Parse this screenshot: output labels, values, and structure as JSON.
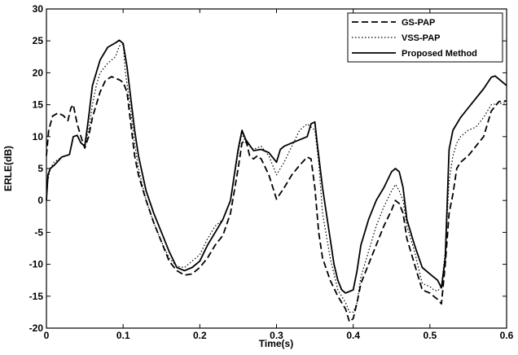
{
  "chart_data": {
    "type": "line",
    "title": "",
    "xlabel": "Time(s)",
    "ylabel": "ERLE(dB)",
    "xlim": [
      0,
      0.6
    ],
    "ylim": [
      -20,
      30
    ],
    "x_ticks": [
      0,
      0.1,
      0.2,
      0.3,
      0.4,
      0.5,
      0.6
    ],
    "y_ticks": [
      -20,
      -15,
      -10,
      -5,
      0,
      5,
      10,
      15,
      20,
      25,
      30
    ],
    "x_tick_labels": [
      "0",
      "0.1",
      "0.2",
      "0.3",
      "0.4",
      "0.5",
      "0.6"
    ],
    "y_tick_labels": [
      "-20",
      "-15",
      "-10",
      "-5",
      "0",
      "5",
      "10",
      "15",
      "20",
      "25",
      "30"
    ],
    "grid": false,
    "legend_position": "top-right",
    "series": [
      {
        "name": "GS-PAP",
        "style": "dashed",
        "color": "#000000",
        "points": [
          [
            0,
            7
          ],
          [
            0.003,
            11
          ],
          [
            0.008,
            13.2
          ],
          [
            0.015,
            13.7
          ],
          [
            0.022,
            13.3
          ],
          [
            0.028,
            12.5
          ],
          [
            0.032,
            14.5
          ],
          [
            0.035,
            15
          ],
          [
            0.04,
            12
          ],
          [
            0.045,
            10
          ],
          [
            0.05,
            8.2
          ],
          [
            0.055,
            10
          ],
          [
            0.06,
            13
          ],
          [
            0.065,
            15
          ],
          [
            0.07,
            17
          ],
          [
            0.077,
            18.8
          ],
          [
            0.085,
            19.4
          ],
          [
            0.095,
            18.9
          ],
          [
            0.1,
            18.5
          ],
          [
            0.105,
            17
          ],
          [
            0.11,
            12
          ],
          [
            0.115,
            7
          ],
          [
            0.12,
            4
          ],
          [
            0.13,
            0
          ],
          [
            0.14,
            -3.5
          ],
          [
            0.15,
            -6.5
          ],
          [
            0.16,
            -9.5
          ],
          [
            0.17,
            -11
          ],
          [
            0.18,
            -11.7
          ],
          [
            0.19,
            -11.5
          ],
          [
            0.2,
            -10.5
          ],
          [
            0.21,
            -9
          ],
          [
            0.22,
            -7
          ],
          [
            0.23,
            -5.5
          ],
          [
            0.24,
            -2
          ],
          [
            0.25,
            5
          ],
          [
            0.255,
            9
          ],
          [
            0.26,
            9.5
          ],
          [
            0.265,
            7
          ],
          [
            0.27,
            6.5
          ],
          [
            0.275,
            7
          ],
          [
            0.28,
            6.5
          ],
          [
            0.29,
            4
          ],
          [
            0.3,
            0.2
          ],
          [
            0.31,
            2
          ],
          [
            0.32,
            4
          ],
          [
            0.33,
            5.5
          ],
          [
            0.34,
            6.8
          ],
          [
            0.345,
            6.5
          ],
          [
            0.35,
            2
          ],
          [
            0.355,
            -5
          ],
          [
            0.36,
            -9
          ],
          [
            0.37,
            -12.5
          ],
          [
            0.38,
            -15
          ],
          [
            0.39,
            -17
          ],
          [
            0.395,
            -19
          ],
          [
            0.4,
            -18.5
          ],
          [
            0.405,
            -16
          ],
          [
            0.41,
            -13
          ],
          [
            0.42,
            -10
          ],
          [
            0.43,
            -7
          ],
          [
            0.44,
            -4
          ],
          [
            0.45,
            -1.5
          ],
          [
            0.455,
            0
          ],
          [
            0.46,
            -0.5
          ],
          [
            0.465,
            -2
          ],
          [
            0.47,
            -6
          ],
          [
            0.48,
            -10
          ],
          [
            0.49,
            -14
          ],
          [
            0.5,
            -14.5
          ],
          [
            0.505,
            -15
          ],
          [
            0.51,
            -15.5
          ],
          [
            0.515,
            -16.2
          ],
          [
            0.52,
            -10
          ],
          [
            0.525,
            -2
          ],
          [
            0.53,
            1
          ],
          [
            0.535,
            5
          ],
          [
            0.54,
            6
          ],
          [
            0.55,
            7
          ],
          [
            0.56,
            8.5
          ],
          [
            0.57,
            10
          ],
          [
            0.58,
            14
          ],
          [
            0.59,
            15.5
          ],
          [
            0.6,
            15.6
          ]
        ]
      },
      {
        "name": "VSS-PAP",
        "style": "dotted",
        "color": "#000000",
        "points": [
          [
            0,
            2
          ],
          [
            0.005,
            5
          ],
          [
            0.01,
            6
          ],
          [
            0.02,
            6.8
          ],
          [
            0.03,
            7.2
          ],
          [
            0.035,
            10
          ],
          [
            0.04,
            10.2
          ],
          [
            0.045,
            9
          ],
          [
            0.05,
            8.5
          ],
          [
            0.055,
            11
          ],
          [
            0.06,
            15
          ],
          [
            0.065,
            18
          ],
          [
            0.07,
            20
          ],
          [
            0.08,
            21.5
          ],
          [
            0.09,
            22.5
          ],
          [
            0.095,
            24.2
          ],
          [
            0.1,
            24.5
          ],
          [
            0.103,
            20
          ],
          [
            0.11,
            14
          ],
          [
            0.115,
            9
          ],
          [
            0.12,
            5
          ],
          [
            0.13,
            0
          ],
          [
            0.14,
            -3.5
          ],
          [
            0.15,
            -6.5
          ],
          [
            0.16,
            -9
          ],
          [
            0.17,
            -10.3
          ],
          [
            0.18,
            -10.5
          ],
          [
            0.19,
            -9.5
          ],
          [
            0.2,
            -8.5
          ],
          [
            0.21,
            -6
          ],
          [
            0.22,
            -4
          ],
          [
            0.23,
            -3
          ],
          [
            0.24,
            0
          ],
          [
            0.25,
            7.5
          ],
          [
            0.255,
            10.5
          ],
          [
            0.26,
            9
          ],
          [
            0.27,
            8
          ],
          [
            0.28,
            8.5
          ],
          [
            0.29,
            7
          ],
          [
            0.3,
            4
          ],
          [
            0.31,
            6
          ],
          [
            0.32,
            8.5
          ],
          [
            0.33,
            11
          ],
          [
            0.34,
            12
          ],
          [
            0.35,
            11
          ],
          [
            0.355,
            6
          ],
          [
            0.36,
            -2
          ],
          [
            0.37,
            -9
          ],
          [
            0.38,
            -14
          ],
          [
            0.39,
            -16
          ],
          [
            0.395,
            -17.5
          ],
          [
            0.4,
            -17.5
          ],
          [
            0.405,
            -16
          ],
          [
            0.41,
            -12
          ],
          [
            0.42,
            -8
          ],
          [
            0.43,
            -4
          ],
          [
            0.44,
            -1
          ],
          [
            0.45,
            1.5
          ],
          [
            0.455,
            2.5
          ],
          [
            0.46,
            1.5
          ],
          [
            0.465,
            0
          ],
          [
            0.47,
            -4
          ],
          [
            0.48,
            -8
          ],
          [
            0.49,
            -13
          ],
          [
            0.5,
            -13.5
          ],
          [
            0.505,
            -14
          ],
          [
            0.51,
            -14.2
          ],
          [
            0.515,
            -13.5
          ],
          [
            0.52,
            -8
          ],
          [
            0.525,
            3
          ],
          [
            0.53,
            7
          ],
          [
            0.535,
            9
          ],
          [
            0.54,
            10
          ],
          [
            0.55,
            11
          ],
          [
            0.56,
            11.5
          ],
          [
            0.57,
            13
          ],
          [
            0.58,
            15
          ],
          [
            0.59,
            15.2
          ],
          [
            0.6,
            15.3
          ]
        ]
      },
      {
        "name": "Proposed Method",
        "style": "solid",
        "color": "#000000",
        "points": [
          [
            0,
            0
          ],
          [
            0.002,
            4
          ],
          [
            0.005,
            5
          ],
          [
            0.01,
            5.5
          ],
          [
            0.02,
            6.8
          ],
          [
            0.03,
            7.2
          ],
          [
            0.035,
            10
          ],
          [
            0.04,
            10.2
          ],
          [
            0.045,
            9
          ],
          [
            0.05,
            8.5
          ],
          [
            0.055,
            13
          ],
          [
            0.06,
            18
          ],
          [
            0.065,
            20
          ],
          [
            0.07,
            22
          ],
          [
            0.08,
            24
          ],
          [
            0.09,
            24.7
          ],
          [
            0.095,
            25.1
          ],
          [
            0.1,
            24.6
          ],
          [
            0.105,
            21
          ],
          [
            0.11,
            16
          ],
          [
            0.115,
            11
          ],
          [
            0.12,
            7
          ],
          [
            0.13,
            1.5
          ],
          [
            0.14,
            -2
          ],
          [
            0.15,
            -5
          ],
          [
            0.16,
            -8
          ],
          [
            0.17,
            -10.5
          ],
          [
            0.18,
            -11
          ],
          [
            0.19,
            -10.5
          ],
          [
            0.2,
            -9.5
          ],
          [
            0.21,
            -7
          ],
          [
            0.22,
            -5
          ],
          [
            0.23,
            -3
          ],
          [
            0.24,
            0
          ],
          [
            0.25,
            8
          ],
          [
            0.255,
            11
          ],
          [
            0.26,
            9.5
          ],
          [
            0.27,
            7.8
          ],
          [
            0.28,
            8
          ],
          [
            0.29,
            7.5
          ],
          [
            0.3,
            6
          ],
          [
            0.305,
            8
          ],
          [
            0.31,
            8.5
          ],
          [
            0.32,
            9
          ],
          [
            0.33,
            9.5
          ],
          [
            0.34,
            10
          ],
          [
            0.345,
            12
          ],
          [
            0.35,
            12.3
          ],
          [
            0.353,
            9
          ],
          [
            0.36,
            2
          ],
          [
            0.37,
            -6
          ],
          [
            0.375,
            -10
          ],
          [
            0.38,
            -12.5
          ],
          [
            0.385,
            -14
          ],
          [
            0.39,
            -14.5
          ],
          [
            0.4,
            -14
          ],
          [
            0.405,
            -11
          ],
          [
            0.41,
            -7
          ],
          [
            0.42,
            -3
          ],
          [
            0.43,
            0
          ],
          [
            0.44,
            2
          ],
          [
            0.45,
            4.5
          ],
          [
            0.455,
            5
          ],
          [
            0.46,
            4.5
          ],
          [
            0.465,
            2
          ],
          [
            0.47,
            -3
          ],
          [
            0.48,
            -7
          ],
          [
            0.49,
            -10.5
          ],
          [
            0.5,
            -11.5
          ],
          [
            0.505,
            -12
          ],
          [
            0.51,
            -12.5
          ],
          [
            0.515,
            -13.7
          ],
          [
            0.52,
            -9
          ],
          [
            0.525,
            8
          ],
          [
            0.53,
            11
          ],
          [
            0.54,
            13
          ],
          [
            0.55,
            14.5
          ],
          [
            0.56,
            16
          ],
          [
            0.57,
            17.5
          ],
          [
            0.58,
            19.3
          ],
          [
            0.585,
            19.5
          ],
          [
            0.59,
            19
          ],
          [
            0.6,
            18
          ]
        ]
      }
    ]
  }
}
